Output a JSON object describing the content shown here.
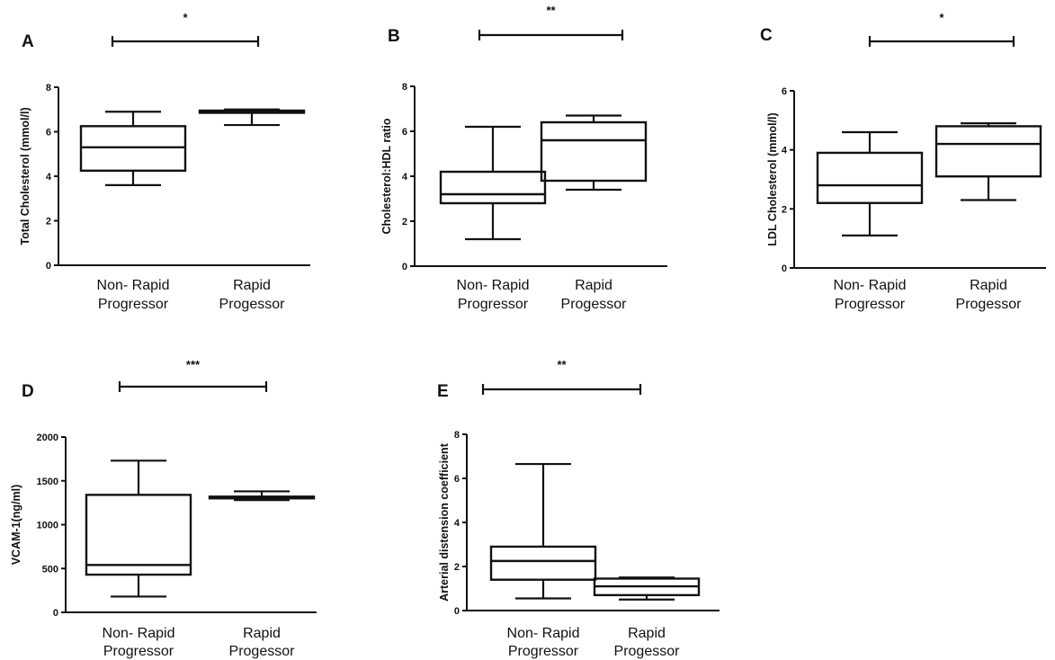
{
  "chart_data": [
    {
      "type": "box",
      "panel": "A",
      "ylabel": "Total Cholesterol (mmol/l)",
      "ylim": [
        0,
        8
      ],
      "yticks": [
        "0",
        "2",
        "4",
        "6",
        "8"
      ],
      "categories": [
        [
          "Non- Rapid",
          "Progressor"
        ],
        [
          "Rapid",
          "Progessor"
        ]
      ],
      "boxes": [
        {
          "min": 3.6,
          "q1": 4.25,
          "median": 5.3,
          "q3": 6.25,
          "max": 6.9
        },
        {
          "min": 6.3,
          "q1": 6.85,
          "median": 6.9,
          "q3": 6.95,
          "max": 7.0
        }
      ],
      "significance": "*"
    },
    {
      "type": "box",
      "panel": "B",
      "ylabel": "Cholesterol:HDL ratio",
      "ylim": [
        0,
        8
      ],
      "yticks": [
        "0",
        "2",
        "4",
        "6",
        "8"
      ],
      "categories": [
        [
          "Non- Rapid",
          "Progressor"
        ],
        [
          "Rapid",
          "Progessor"
        ]
      ],
      "boxes": [
        {
          "min": 1.2,
          "q1": 2.8,
          "median": 3.2,
          "q3": 4.2,
          "max": 6.2
        },
        {
          "min": 3.4,
          "q1": 3.8,
          "median": 5.6,
          "q3": 6.4,
          "max": 6.7
        }
      ],
      "significance": "**"
    },
    {
      "type": "box",
      "panel": "C",
      "ylabel": "LDL Cholesterol (mmol/l)",
      "ylim": [
        0,
        6
      ],
      "yticks": [
        "0",
        "2",
        "4",
        "6"
      ],
      "categories": [
        [
          "Non- Rapid",
          "Progressor"
        ],
        [
          "Rapid",
          "Progessor"
        ]
      ],
      "boxes": [
        {
          "min": 1.1,
          "q1": 2.2,
          "median": 2.8,
          "q3": 3.9,
          "max": 4.6
        },
        {
          "min": 2.3,
          "q1": 3.1,
          "median": 4.2,
          "q3": 4.8,
          "max": 4.9
        }
      ],
      "significance": "*"
    },
    {
      "type": "box",
      "panel": "D",
      "ylabel": "VCAM-1(ng/ml)",
      "ylim": [
        0,
        2000
      ],
      "yticks": [
        "0",
        "500",
        "1000",
        "1500",
        "2000"
      ],
      "categories": [
        [
          "Non- Rapid",
          "Progressor"
        ],
        [
          "Rapid",
          "Progessor"
        ]
      ],
      "boxes": [
        {
          "min": 180,
          "q1": 430,
          "median": 540,
          "q3": 1340,
          "max": 1730
        },
        {
          "min": 1280,
          "q1": 1300,
          "median": 1310,
          "q3": 1320,
          "max": 1380
        }
      ],
      "significance": "***"
    },
    {
      "type": "box",
      "panel": "E",
      "ylabel": "Arterial distension coefficient",
      "ylim": [
        0,
        8
      ],
      "yticks": [
        "0",
        "2",
        "4",
        "6",
        "8"
      ],
      "categories": [
        [
          "Non- Rapid",
          "Progressor"
        ],
        [
          "Rapid",
          "Progessor"
        ]
      ],
      "boxes": [
        {
          "min": 0.55,
          "q1": 1.4,
          "median": 2.25,
          "q3": 2.9,
          "max": 6.65
        },
        {
          "min": 0.5,
          "q1": 0.7,
          "median": 1.1,
          "q3": 1.45,
          "max": 1.5
        }
      ],
      "significance": "**"
    }
  ]
}
